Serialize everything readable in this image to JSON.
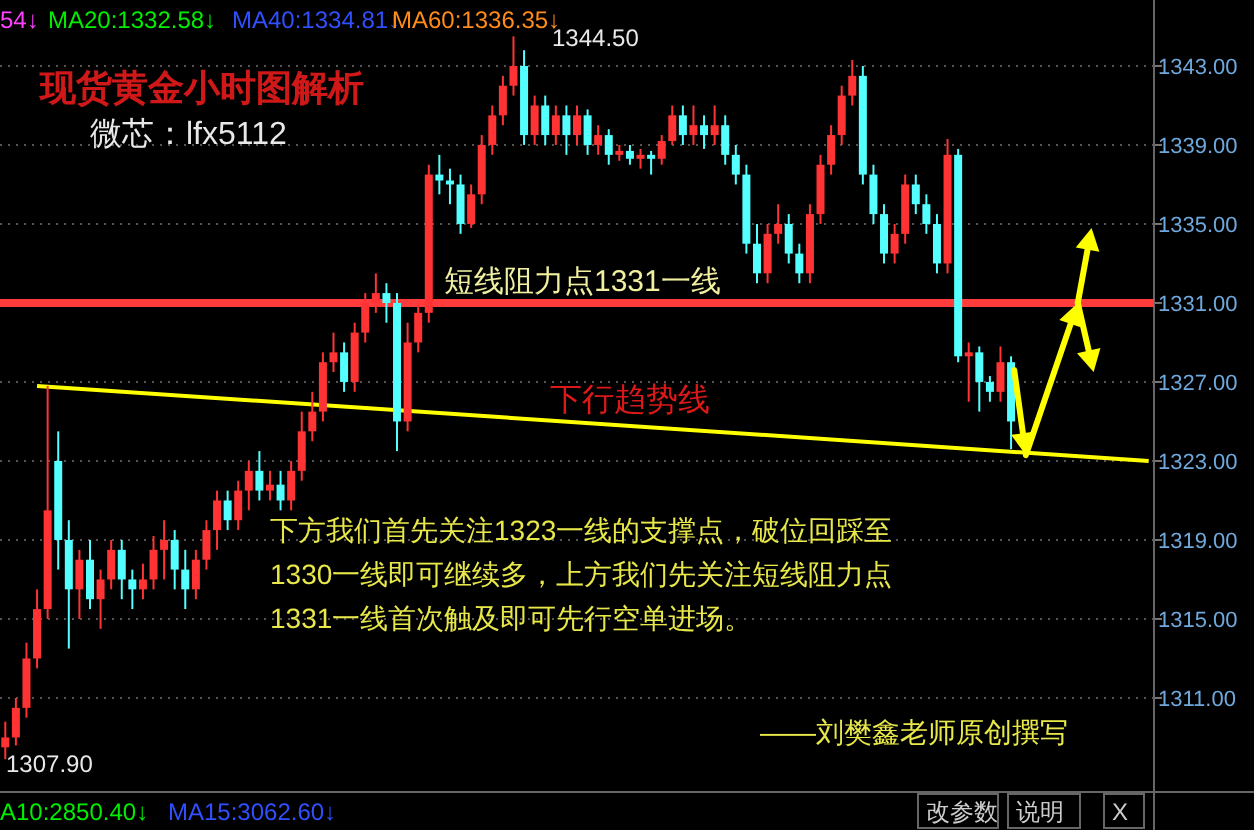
{
  "chart_data": {
    "type": "candlestick",
    "title": "现货黄金小时图解析",
    "subtitle": "微芯：lfx5112",
    "categories": [
      null,
      null,
      null,
      null,
      null,
      null,
      null,
      null,
      null,
      null,
      null,
      null,
      null,
      null,
      null,
      null,
      null,
      null,
      null,
      null,
      null,
      null,
      null,
      null,
      null,
      null,
      null,
      null,
      null,
      null,
      null,
      null,
      null,
      null,
      null,
      null,
      null,
      null,
      null,
      null,
      null,
      null,
      null,
      null,
      null,
      null,
      null,
      null,
      null,
      null,
      null,
      null,
      null,
      null,
      null,
      null,
      null,
      null,
      null,
      null,
      null,
      null,
      null,
      null,
      null,
      null,
      null,
      null,
      null,
      null,
      null,
      null,
      null,
      null,
      null,
      null,
      null,
      null,
      null,
      null,
      null,
      null,
      null,
      null,
      null,
      null,
      null,
      null,
      null,
      null,
      null,
      null,
      null,
      null,
      null,
      null,
      null,
      null,
      null,
      null,
      null,
      null,
      null,
      null,
      null,
      null,
      null,
      null,
      null
    ],
    "ohlc": [
      [
        1308.5,
        1309.8,
        1307.9,
        1309
      ],
      [
        1309,
        1311,
        1308.6,
        1310.5
      ],
      [
        1310.5,
        1313.8,
        1310,
        1313
      ],
      [
        1313,
        1316.5,
        1312.5,
        1315.5
      ],
      [
        1315.5,
        1326.8,
        1315,
        1320.5
      ],
      [
        1323,
        1324.5,
        1317.5,
        1319
      ],
      [
        1319,
        1320,
        1313.5,
        1316.5
      ],
      [
        1316.5,
        1318.5,
        1315,
        1318
      ],
      [
        1318,
        1319,
        1315.5,
        1316
      ],
      [
        1316,
        1317.5,
        1314.5,
        1317
      ],
      [
        1317,
        1319,
        1316.5,
        1318.5
      ],
      [
        1318.5,
        1319,
        1316,
        1317
      ],
      [
        1317,
        1317.5,
        1315.5,
        1316.5
      ],
      [
        1316.5,
        1317.8,
        1316,
        1317
      ],
      [
        1317,
        1319.2,
        1316.5,
        1318.5
      ],
      [
        1318.5,
        1320,
        1317,
        1319
      ],
      [
        1319,
        1319.5,
        1316.5,
        1317.5
      ],
      [
        1317.5,
        1318.5,
        1315.5,
        1316.5
      ],
      [
        1316.5,
        1318.5,
        1316,
        1318
      ],
      [
        1318,
        1320,
        1317.5,
        1319.5
      ],
      [
        1319.5,
        1321.5,
        1318.5,
        1321
      ],
      [
        1321,
        1321.5,
        1319.5,
        1320
      ],
      [
        1320,
        1322,
        1319.5,
        1321.5
      ],
      [
        1321.5,
        1323,
        1320.5,
        1322.5
      ],
      [
        1322.5,
        1323.5,
        1321,
        1321.5
      ],
      [
        1321.5,
        1322.5,
        1321,
        1321.8
      ],
      [
        1321.8,
        1322.5,
        1320.5,
        1321
      ],
      [
        1321,
        1323,
        1320.5,
        1322.5
      ],
      [
        1322.5,
        1325.5,
        1322,
        1324.5
      ],
      [
        1324.5,
        1326.5,
        1324,
        1325.5
      ],
      [
        1325.5,
        1328.5,
        1325,
        1328
      ],
      [
        1328,
        1329.5,
        1327.5,
        1328.5
      ],
      [
        1328.5,
        1329,
        1326.5,
        1327
      ],
      [
        1327,
        1330,
        1326.5,
        1329.5
      ],
      [
        1329.5,
        1331.5,
        1329,
        1331
      ],
      [
        1331,
        1332.5,
        1330.5,
        1331.5
      ],
      [
        1331.5,
        1332,
        1330,
        1331
      ],
      [
        1331,
        1331.5,
        1323.5,
        1325
      ],
      [
        1325,
        1330,
        1324.5,
        1329
      ],
      [
        1329,
        1331,
        1328.5,
        1330.5
      ],
      [
        1330.5,
        1338,
        1330,
        1337.5
      ],
      [
        1337.5,
        1338.5,
        1336.5,
        1337.2
      ],
      [
        1337.2,
        1337.8,
        1336,
        1337
      ],
      [
        1337,
        1337.5,
        1334.5,
        1335
      ],
      [
        1335,
        1337,
        1334.8,
        1336.5
      ],
      [
        1336.5,
        1339.5,
        1336,
        1339
      ],
      [
        1339,
        1341,
        1338.5,
        1340.5
      ],
      [
        1340.5,
        1342.5,
        1340,
        1342
      ],
      [
        1342,
        1344.5,
        1341.5,
        1343
      ],
      [
        1343,
        1343.8,
        1339,
        1339.5
      ],
      [
        1339.5,
        1341.5,
        1339,
        1341
      ],
      [
        1341,
        1341.5,
        1339,
        1339.5
      ],
      [
        1339.5,
        1341,
        1339,
        1340.5
      ],
      [
        1340.5,
        1341,
        1338.5,
        1339.5
      ],
      [
        1339.5,
        1341,
        1339,
        1340.5
      ],
      [
        1340.5,
        1340.8,
        1338.5,
        1339
      ],
      [
        1339,
        1340,
        1338.5,
        1339.5
      ],
      [
        1339.5,
        1339.8,
        1338,
        1338.5
      ],
      [
        1338.5,
        1339,
        1338.2,
        1338.7
      ],
      [
        1338.7,
        1339,
        1338,
        1338.3
      ],
      [
        1338.3,
        1338.8,
        1337.8,
        1338.5
      ],
      [
        1338.5,
        1338.7,
        1337.5,
        1338.3
      ],
      [
        1338.3,
        1339.5,
        1338,
        1339.2
      ],
      [
        1339.2,
        1341,
        1339,
        1340.5
      ],
      [
        1340.5,
        1341,
        1339,
        1339.5
      ],
      [
        1339.5,
        1341,
        1339,
        1340
      ],
      [
        1340,
        1340.5,
        1338.8,
        1339.5
      ],
      [
        1339.5,
        1341,
        1339,
        1340
      ],
      [
        1340,
        1340.5,
        1338,
        1338.5
      ],
      [
        1338.5,
        1339,
        1337,
        1337.5
      ],
      [
        1337.5,
        1338,
        1333.5,
        1334
      ],
      [
        1334,
        1335,
        1332,
        1332.5
      ],
      [
        1332.5,
        1335,
        1332,
        1334.5
      ],
      [
        1334.5,
        1336,
        1334,
        1335
      ],
      [
        1335,
        1335.5,
        1333,
        1333.5
      ],
      [
        1333.5,
        1334,
        1332,
        1332.5
      ],
      [
        1332.5,
        1336,
        1332,
        1335.5
      ],
      [
        1335.5,
        1338.5,
        1335,
        1338
      ],
      [
        1338,
        1340,
        1337.5,
        1339.5
      ],
      [
        1339.5,
        1342,
        1339,
        1341.5
      ],
      [
        1341.5,
        1343.3,
        1341,
        1342.5
      ],
      [
        1342.5,
        1343,
        1337,
        1337.5
      ],
      [
        1337.5,
        1338,
        1335,
        1335.5
      ],
      [
        1335.5,
        1336,
        1333,
        1333.5
      ],
      [
        1333.5,
        1335,
        1333,
        1334.5
      ],
      [
        1334.5,
        1337.5,
        1334,
        1337
      ],
      [
        1337,
        1337.5,
        1335.5,
        1336
      ],
      [
        1336,
        1336.5,
        1334.5,
        1335
      ],
      [
        1335,
        1335.5,
        1332.5,
        1333
      ],
      [
        1333,
        1339.3,
        1332.5,
        1338.5
      ],
      [
        1338.5,
        1338.8,
        1328,
        1328.3
      ],
      [
        1328.3,
        1329,
        1326,
        1328.5
      ],
      [
        1328.5,
        1328.8,
        1325.5,
        1327
      ],
      [
        1327,
        1327.3,
        1326,
        1326.5
      ],
      [
        1326.5,
        1328.8,
        1326,
        1328
      ],
      [
        1328,
        1328.3,
        1323.6,
        1325
      ],
      null,
      null,
      null,
      null,
      null,
      null,
      null,
      null,
      null,
      null,
      null,
      null,
      null
    ],
    "series": [
      {
        "type": "line",
        "color": "#ffff00",
        "values": [
          null,
          null,
          null,
          1326.8,
          null,
          null,
          null,
          null,
          null,
          null,
          null,
          null,
          null,
          null,
          null,
          null,
          null,
          null,
          null,
          null,
          null,
          null,
          null,
          null,
          null,
          null,
          null,
          null,
          null,
          null,
          null,
          null,
          null,
          null,
          null,
          null,
          null,
          null,
          null,
          null,
          null,
          null,
          null,
          null,
          null,
          null,
          null,
          null,
          null,
          null,
          null,
          null,
          null,
          null,
          null,
          null,
          null,
          null,
          null,
          null,
          null,
          null,
          null,
          null,
          null,
          null,
          null,
          null,
          null,
          null,
          null,
          null,
          null,
          null,
          null,
          null,
          null,
          null,
          null,
          null,
          null,
          null,
          null,
          null,
          null,
          null,
          null,
          null,
          null,
          null,
          null,
          null,
          null,
          null,
          null,
          null,
          null,
          null,
          null,
          null,
          null,
          null,
          null,
          null,
          null,
          null,
          null,
          null,
          1323.0
        ]
      }
    ],
    "ylim": [
      1306.34,
      1346.34
    ],
    "yticks": [
      {
        "value": 1311,
        "label": "1311.00"
      },
      {
        "value": 1315,
        "label": "1315.00"
      },
      {
        "value": 1319,
        "label": "1319.00"
      },
      {
        "value": 1323,
        "label": "1323.00"
      },
      {
        "value": 1327,
        "label": "1327.00"
      },
      {
        "value": 1331,
        "label": "1331.00"
      },
      {
        "value": 1335,
        "label": "1335.00"
      },
      {
        "value": 1339,
        "label": "1339.00"
      },
      {
        "value": 1343,
        "label": "1343.00"
      }
    ],
    "tick_labels": "y",
    "grid": "y",
    "ref_lines": [
      {
        "axis": "y",
        "value": 1331,
        "label": "短线阻力点1331一线",
        "color": "#ff3b3b"
      }
    ],
    "annotations": [
      "54↓",
      "MA20:1332.58↓",
      "MA40:1334.81↓",
      "MA60:1336.35↓",
      "下行趋势线",
      "下方我们首先关注1323一线的支撑点，破位回踩至",
      "1330一线即可继续多，上方我们先关注短线阻力点",
      "1331一线首次触及即可先行空单进场。",
      "——刘樊鑫老师原创撰写",
      "A10:2850.40↓",
      "MA15:3062.60↓",
      "改参数",
      "说明",
      "X",
      "1344.50",
      "1307.90"
    ]
  }
}
